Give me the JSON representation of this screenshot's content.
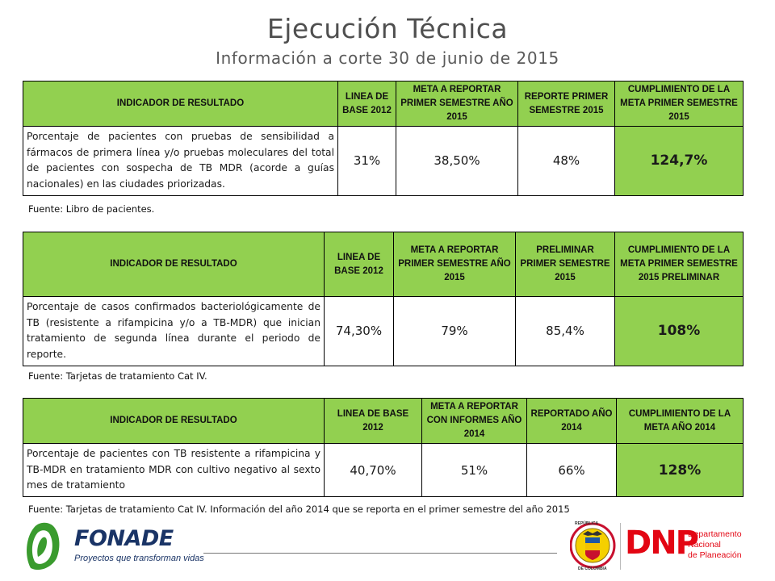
{
  "title": "Ejecución Técnica",
  "subtitle": "Información a corte 30 de junio de 2015",
  "tables": [
    {
      "headers": [
        "INDICADOR DE RESULTADO",
        "LINEA DE BASE 2012",
        "META A REPORTAR PRIMER SEMESTRE AÑO 2015",
        "REPORTE PRIMER SEMESTRE 2015",
        "CUMPLIMIENTO DE LA META PRIMER SEMESTRE 2015"
      ],
      "row": [
        "Porcentaje de pacientes con pruebas de sensibilidad a fármacos de primera línea y/o pruebas moleculares del total de pacientes con sospecha de TB MDR (acorde a guías nacionales) en las ciudades priorizadas.",
        "31%",
        "38,50%",
        "48%",
        "124,7%"
      ],
      "source": "Fuente: Libro de pacientes."
    },
    {
      "headers": [
        "INDICADOR DE RESULTADO",
        "LINEA DE BASE 2012",
        "META A REPORTAR PRIMER SEMESTRE AÑO 2015",
        "PRELIMINAR PRIMER SEMESTRE 2015",
        "CUMPLIMIENTO DE LA META PRIMER SEMESTRE 2015 PRELIMINAR"
      ],
      "row": [
        "Porcentaje de casos confirmados bacteriológicamente de TB (resistente a rifampicina y/o a TB-MDR) que inician tratamiento de segunda línea durante el periodo de reporte.",
        "74,30%",
        "79%",
        "85,4%",
        "108%"
      ],
      "source": "Fuente: Tarjetas de tratamiento Cat IV."
    },
    {
      "headers": [
        "INDICADOR DE RESULTADO",
        "LINEA DE BASE 2012",
        "META A REPORTAR CON INFORMES AÑO 2014",
        "REPORTADO AÑO 2014",
        "CUMPLIMIENTO DE LA META AÑO 2014"
      ],
      "row": [
        "Porcentaje de pacientes con TB resistente a rifampicina y TB-MDR en tratamiento MDR con cultivo negativo al sexto mes de tratamiento",
        "40,70%",
        "51%",
        "66%",
        "128%"
      ],
      "source": "Fuente: Tarjetas de tratamiento Cat IV. Información del año 2014  que se reporta en el primer semestre del año 2015"
    }
  ],
  "logos": {
    "fonade": {
      "name": "FONADE",
      "tagline": "Proyectos que transforman vidas"
    },
    "colombia_seal": {
      "text_top": "REPÚBLICA",
      "text_bottom": "DE COLOMBIA"
    },
    "dnp": {
      "name": "DNP",
      "line1": "Departamento",
      "line2": "Nacional",
      "line3": "de Planeación"
    }
  },
  "colors": {
    "header_green": "#92d050",
    "dnp_red": "#e30613",
    "fonade_green": "#3a9b2e",
    "fonade_navy": "#1a3466"
  }
}
